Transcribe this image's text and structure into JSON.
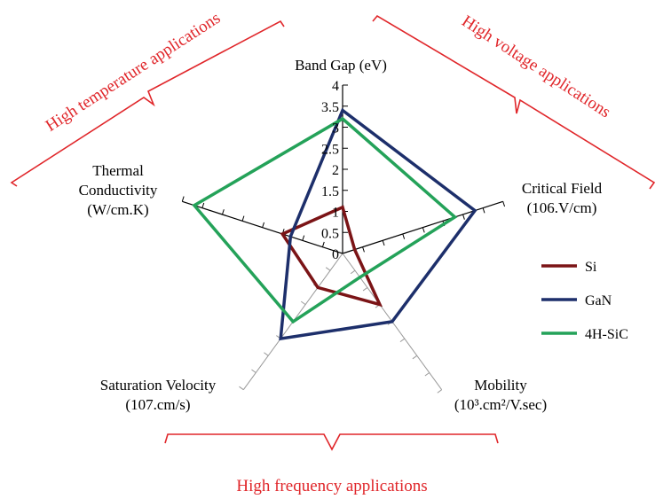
{
  "chart_data": {
    "type": "radar",
    "axes": [
      {
        "name": "Band Gap",
        "label_lines": [
          "Band Gap (eV)"
        ],
        "ticks": [
          "0",
          "0.5",
          "1",
          "1.5",
          "2",
          "2.5",
          "3",
          "3.5",
          "4"
        ],
        "max": 4
      },
      {
        "name": "Critical Field",
        "label_lines": [
          "Critical Field",
          "(106.V/cm)"
        ],
        "max": 4
      },
      {
        "name": "Mobility",
        "label_lines": [
          "Mobility",
          "(10³.cm²/V.sec)"
        ],
        "max": 4
      },
      {
        "name": "Saturation Velocity",
        "label_lines": [
          "Saturation Velocity",
          "(107.cm/s)"
        ],
        "max": 4
      },
      {
        "name": "Thermal Conductivity",
        "label_lines": [
          "Thermal",
          "Conductivity",
          "(W/cm.K)"
        ],
        "max": 4
      }
    ],
    "series": [
      {
        "name": "Si",
        "color": "#7b1416",
        "values": [
          1.1,
          0.3,
          1.5,
          1.0,
          1.5
        ]
      },
      {
        "name": "GaN",
        "color": "#1d2f6b",
        "values": [
          3.4,
          3.3,
          2.0,
          2.5,
          1.3
        ]
      },
      {
        "name": "4H-SiC",
        "color": "#24a259",
        "values": [
          3.2,
          2.8,
          0.7,
          2.0,
          3.7
        ]
      }
    ],
    "group_labels": {
      "temperature": "High temperature applications",
      "voltage": "High voltage applications",
      "frequency": "High frequency applications"
    },
    "colors": {
      "group_label": "#e0262a",
      "bracket": "#e0262a",
      "axis": "#000000",
      "spoke": "#999999"
    },
    "legend_position": "right"
  }
}
